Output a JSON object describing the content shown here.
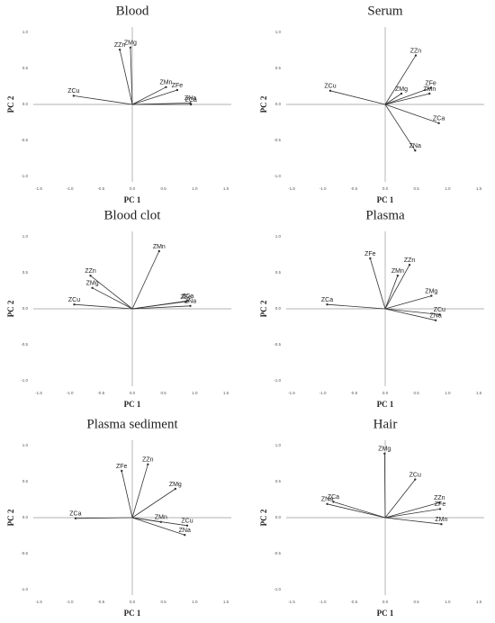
{
  "chart_data": [
    {
      "type": "biplot",
      "title": "Blood",
      "x_label": "PC 1",
      "y_label": "PC 2",
      "labels": [
        "ZCu",
        "ZZn",
        "ZMg",
        "ZMn",
        "ZFe",
        "ZNa",
        "ZCa"
      ],
      "x": [
        -0.94,
        -0.2,
        -0.03,
        0.54,
        0.72,
        0.93,
        0.94
      ],
      "y": [
        0.12,
        0.76,
        0.79,
        0.24,
        0.2,
        0.02,
        0.0
      ],
      "xlim": [
        -1.5,
        1.5
      ],
      "ylim": [
        -1.0,
        1.0
      ],
      "xticks": [
        -1.5,
        {
          "value": -1,
          "label": "-1.0"
        },
        -0.5,
        {
          "value": 0,
          "label": "0.0"
        },
        0.5,
        {
          "value": 1,
          "label": "1.0"
        },
        1.5
      ],
      "yticks": [
        {
          "value": -1,
          "label": "-1.0"
        },
        -0.5,
        {
          "value": 0,
          "label": "0.0"
        },
        0.5,
        {
          "value": 1,
          "label": "1.0"
        }
      ],
      "color": "#333333"
    },
    {
      "type": "biplot",
      "title": "Serum",
      "x_label": "PC 1",
      "y_label": "PC 2",
      "labels": [
        "ZCu",
        "ZZn",
        "ZFe",
        "ZMn",
        "ZMg",
        "ZCa",
        "ZNa"
      ],
      "x": [
        -0.88,
        0.49,
        0.73,
        0.71,
        0.26,
        0.86,
        0.48
      ],
      "y": [
        0.19,
        0.68,
        0.23,
        0.15,
        0.15,
        -0.26,
        -0.64
      ],
      "xlim": [
        -1.5,
        1.5
      ],
      "ylim": [
        -1.0,
        1.0
      ],
      "xticks": [
        -1.5,
        {
          "value": -1,
          "label": "-1.0"
        },
        -0.5,
        {
          "value": 0,
          "label": "0.0"
        },
        0.5,
        {
          "value": 1,
          "label": "1.0"
        },
        1.5
      ],
      "yticks": [
        {
          "value": -1,
          "label": "-1.0"
        },
        -0.5,
        {
          "value": 0,
          "label": "0.0"
        },
        0.5,
        {
          "value": 1,
          "label": "1.0"
        }
      ],
      "color": "#333333"
    },
    {
      "type": "biplot",
      "title": "Blood clot",
      "x_label": "PC 1",
      "y_label": "PC 2",
      "labels": [
        "ZMn",
        "ZZn",
        "ZMg",
        "ZCu",
        "ZFe",
        "ZCa",
        "ZNa"
      ],
      "x": [
        0.43,
        -0.67,
        -0.64,
        -0.93,
        0.86,
        0.89,
        0.93
      ],
      "y": [
        0.8,
        0.46,
        0.29,
        0.06,
        0.1,
        0.11,
        0.04
      ],
      "xlim": [
        -1.5,
        1.5
      ],
      "ylim": [
        -1.0,
        1.0
      ],
      "xticks": [
        -1.5,
        {
          "value": -1,
          "label": "-1.0"
        },
        -0.5,
        {
          "value": 0,
          "label": "0.0"
        },
        0.5,
        {
          "value": 1,
          "label": "1.0"
        },
        1.5
      ],
      "yticks": [
        {
          "value": -1,
          "label": "-1.0"
        },
        -0.5,
        {
          "value": 0,
          "label": "0.0"
        },
        0.5,
        {
          "value": 1,
          "label": "1.0"
        }
      ],
      "color": "#333333"
    },
    {
      "type": "biplot",
      "title": "Plasma",
      "x_label": "PC 1",
      "y_label": "PC 2",
      "labels": [
        "ZFe",
        "ZZn",
        "ZMn",
        "ZMg",
        "ZCu",
        "ZNa",
        "ZCa"
      ],
      "x": [
        -0.24,
        0.39,
        0.2,
        0.74,
        0.87,
        0.81,
        -0.93
      ],
      "y": [
        0.7,
        0.61,
        0.46,
        0.18,
        -0.08,
        -0.16,
        0.06
      ],
      "xlim": [
        -1.5,
        1.5
      ],
      "ylim": [
        -1.0,
        1.0
      ],
      "xticks": [
        -1.5,
        {
          "value": -1,
          "label": "-1.0"
        },
        -0.5,
        {
          "value": 0,
          "label": "0.0"
        },
        0.5,
        {
          "value": 1,
          "label": "1.0"
        },
        1.5
      ],
      "yticks": [
        {
          "value": -1,
          "label": "-1.0"
        },
        -0.5,
        {
          "value": 0,
          "label": "0.0"
        },
        0.5,
        {
          "value": 1,
          "label": "1.0"
        }
      ],
      "color": "#333333"
    },
    {
      "type": "biplot",
      "title": "Plasma sediment",
      "x_label": "PC 1",
      "y_label": "PC 2",
      "labels": [
        "ZFe",
        "ZZn",
        "ZMg",
        "ZCa",
        "ZMn",
        "ZCu",
        "ZNa"
      ],
      "x": [
        -0.17,
        0.25,
        0.69,
        -0.91,
        0.46,
        0.88,
        0.84
      ],
      "y": [
        0.65,
        0.74,
        0.4,
        -0.01,
        -0.06,
        -0.11,
        -0.24
      ],
      "xlim": [
        -1.5,
        1.5
      ],
      "ylim": [
        -1.0,
        1.0
      ],
      "xticks": [
        -1.5,
        {
          "value": -1,
          "label": "-1.0"
        },
        -0.5,
        {
          "value": 0,
          "label": "0.0"
        },
        0.5,
        {
          "value": 1,
          "label": "1.0"
        },
        1.5
      ],
      "yticks": [
        {
          "value": -1,
          "label": "-1.0"
        },
        -0.5,
        {
          "value": 0,
          "label": "0.0"
        },
        0.5,
        {
          "value": 1,
          "label": "1.0"
        }
      ],
      "color": "#333333"
    },
    {
      "type": "biplot",
      "title": "Hair",
      "x_label": "PC 1",
      "y_label": "PC 2",
      "labels": [
        "ZMg",
        "ZCu",
        "ZZn",
        "ZFe",
        "ZMn",
        "ZCa",
        "ZNa"
      ],
      "x": [
        -0.01,
        0.48,
        0.87,
        0.88,
        0.9,
        -0.83,
        -0.93
      ],
      "y": [
        0.89,
        0.53,
        0.21,
        0.12,
        -0.09,
        0.22,
        0.19
      ],
      "xlim": [
        -1.5,
        1.5
      ],
      "ylim": [
        -1.0,
        1.0
      ],
      "xticks": [
        -1.5,
        {
          "value": -1,
          "label": "-1.0"
        },
        -0.5,
        {
          "value": 0,
          "label": "0.0"
        },
        0.5,
        {
          "value": 1,
          "label": "1.0"
        },
        1.5
      ],
      "yticks": [
        {
          "value": -1,
          "label": "-1.0"
        },
        -0.5,
        {
          "value": 0,
          "label": "0.0"
        },
        0.5,
        {
          "value": 1,
          "label": "1.0"
        }
      ],
      "color": "#333333"
    }
  ]
}
